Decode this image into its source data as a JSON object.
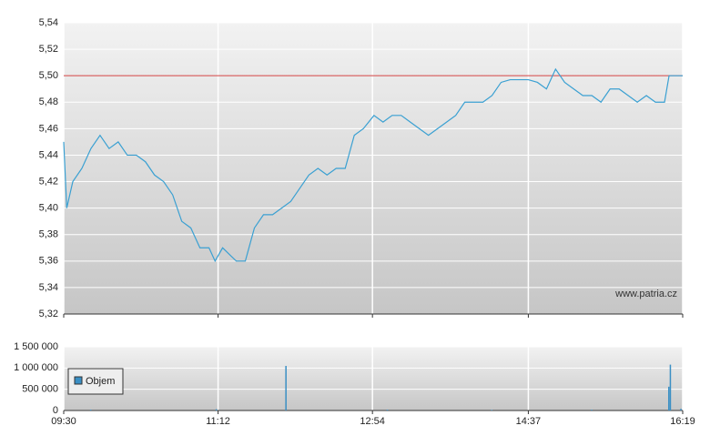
{
  "chart_data": [
    {
      "type": "line",
      "annotation": "www.patria.cz",
      "reference_line": 5.5,
      "reference_color": "#d04040",
      "xlim": [
        0,
        409
      ],
      "ylim": [
        5.32,
        5.54
      ],
      "yticks": [
        {
          "value": 5.32,
          "label": "5,32"
        },
        {
          "value": 5.34,
          "label": "5,34"
        },
        {
          "value": 5.36,
          "label": "5,36"
        },
        {
          "value": 5.38,
          "label": "5,38"
        },
        {
          "value": 5.4,
          "label": "5,40"
        },
        {
          "value": 5.42,
          "label": "5,42"
        },
        {
          "value": 5.44,
          "label": "5,44"
        },
        {
          "value": 5.46,
          "label": "5,46"
        },
        {
          "value": 5.48,
          "label": "5,48"
        },
        {
          "value": 5.5,
          "label": "5,50"
        },
        {
          "value": 5.52,
          "label": "5,52"
        },
        {
          "value": 5.54,
          "label": "5,54"
        }
      ],
      "grid": true,
      "x": [
        0,
        2,
        6,
        12,
        18,
        24,
        30,
        36,
        42,
        48,
        54,
        60,
        66,
        72,
        78,
        84,
        90,
        96,
        100,
        105,
        114,
        120,
        126,
        132,
        138,
        144,
        150,
        156,
        162,
        168,
        174,
        180,
        186,
        192,
        198,
        205,
        211,
        217,
        223,
        229,
        235,
        241,
        247,
        253,
        259,
        265,
        271,
        277,
        283,
        289,
        295,
        301,
        307,
        313,
        319,
        325,
        331,
        337,
        343,
        349,
        355,
        361,
        367,
        373,
        379,
        385,
        391,
        397,
        400,
        409
      ],
      "series": [
        {
          "color": "#3aa0d2",
          "values": [
            5.45,
            5.4,
            5.42,
            5.43,
            5.445,
            5.455,
            5.445,
            5.45,
            5.44,
            5.44,
            5.435,
            5.425,
            5.42,
            5.41,
            5.39,
            5.385,
            5.37,
            5.37,
            5.36,
            5.37,
            5.36,
            5.36,
            5.385,
            5.395,
            5.395,
            5.4,
            5.405,
            5.415,
            5.425,
            5.43,
            5.425,
            5.43,
            5.43,
            5.455,
            5.46,
            5.47,
            5.465,
            5.47,
            5.47,
            5.465,
            5.46,
            5.455,
            5.46,
            5.465,
            5.47,
            5.48,
            5.48,
            5.48,
            5.485,
            5.495,
            5.497,
            5.497,
            5.497,
            5.495,
            5.49,
            5.505,
            5.495,
            5.49,
            5.485,
            5.485,
            5.48,
            5.49,
            5.49,
            5.485,
            5.48,
            5.485,
            5.48,
            5.48,
            5.5,
            5.5
          ]
        }
      ]
    },
    {
      "type": "bar",
      "xlim": [
        0,
        409
      ],
      "xticks": [
        {
          "value": 0,
          "label": "09:30"
        },
        {
          "value": 102,
          "label": "11:12"
        },
        {
          "value": 204,
          "label": "12:54"
        },
        {
          "value": 307,
          "label": "14:37"
        },
        {
          "value": 409,
          "label": "16:19"
        }
      ],
      "ylim": [
        0,
        1500000
      ],
      "yticks": [
        0,
        {
          "value": 500000,
          "label": "500 000"
        },
        {
          "value": 1000000,
          "label": "1 000 000"
        },
        {
          "value": 1500000,
          "label": "1 500 000"
        }
      ],
      "grid": true,
      "legend": "top-left",
      "x": [
        18,
        101,
        147,
        214,
        283,
        349,
        400,
        401,
        408
      ],
      "series": [
        {
          "name": "Objem",
          "color": "#3a8fc4",
          "values": [
            20000,
            30000,
            1050000,
            20000,
            15000,
            20000,
            560000,
            1080000,
            40000
          ]
        }
      ]
    }
  ]
}
